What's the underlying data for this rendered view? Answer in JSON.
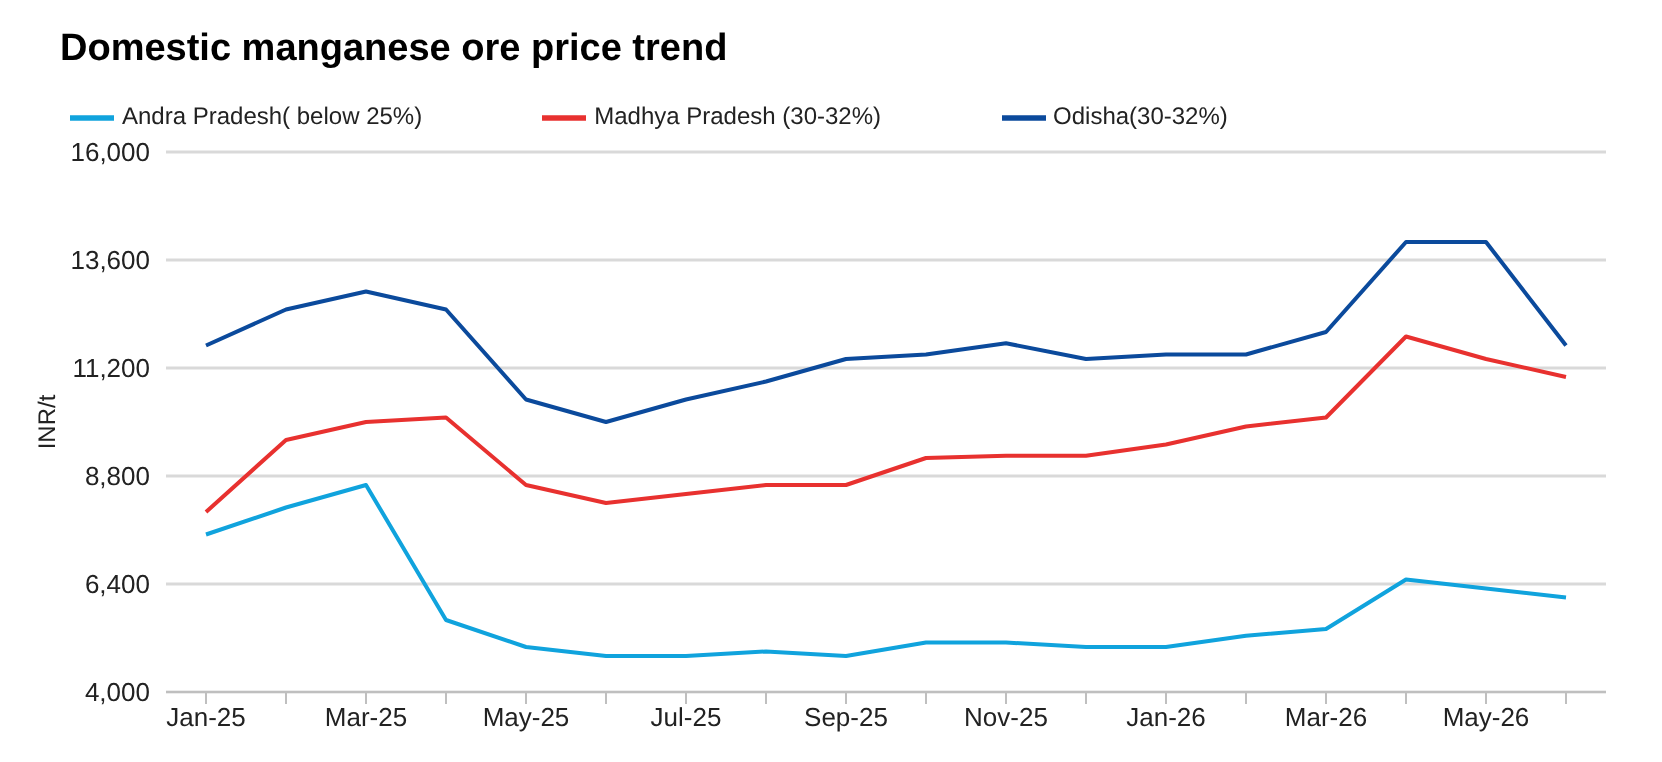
{
  "chart_data": {
    "type": "line",
    "title": "Domestic manganese ore price trend",
    "ylabel": "INR/t",
    "categories": [
      "Jan-25",
      null,
      "Mar-25",
      null,
      "May-25",
      null,
      "Jul-25",
      null,
      "Sep-25",
      null,
      "Nov-25",
      null,
      "Jan-26",
      null,
      "Mar-26",
      null,
      "May-26",
      null
    ],
    "series": [
      {
        "name": "Madhya Pradesh (30-32%)",
        "color": "#e8312f",
        "values": [
          8000,
          9600,
          10000,
          10100,
          8600,
          8200,
          8400,
          8600,
          8600,
          9200,
          9250,
          9250,
          9500,
          9900,
          10100,
          11900,
          11400,
          11000
        ]
      },
      {
        "name": "Odisha(30-32%)",
        "color": "#0b4a9c",
        "values": [
          11700,
          12500,
          12900,
          12500,
          10500,
          10000,
          10500,
          10900,
          11400,
          11500,
          11750,
          11400,
          11500,
          11500,
          12000,
          14000,
          14000,
          11700
        ]
      },
      {
        "name": "Andra Pradesh( below 25%)",
        "color": "#10a3dd",
        "values": [
          7500,
          8100,
          8600,
          5600,
          5000,
          4800,
          4800,
          4900,
          4800,
          5100,
          5100,
          5000,
          5000,
          5250,
          5400,
          6500,
          6300,
          6100
        ]
      }
    ],
    "ylim": [
      4000,
      16000
    ],
    "yticks": [
      {
        "value": 4000,
        "label": "4,000"
      },
      {
        "value": 6400,
        "label": "6,400"
      },
      {
        "value": 8800,
        "label": "8,800"
      },
      {
        "value": 11200,
        "label": "11,200"
      },
      {
        "value": 13600,
        "label": "13,600"
      },
      {
        "value": 16000,
        "label": "16,000"
      }
    ],
    "grid": "y",
    "legend": "top left",
    "marker": "none",
    "line_style": "solid"
  }
}
